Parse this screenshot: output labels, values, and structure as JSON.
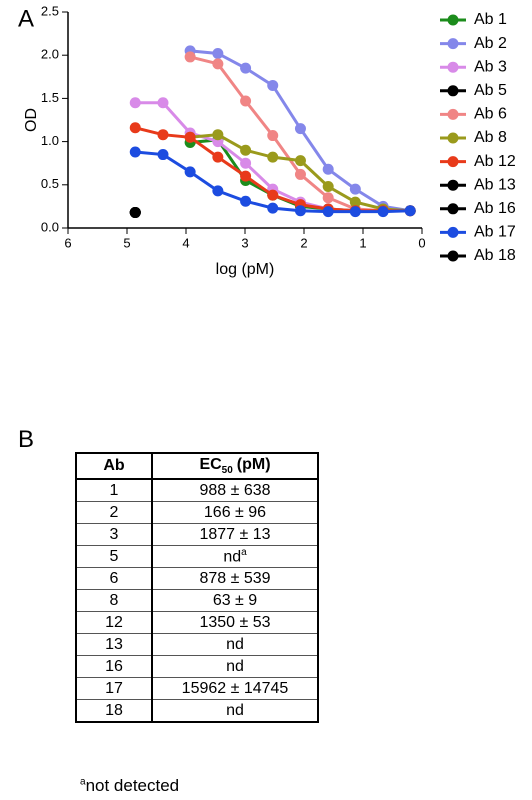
{
  "panel_labels": [
    "A",
    "B"
  ],
  "chart_data": {
    "type": "line",
    "xlabel": "log (pM)",
    "ylabel": "OD",
    "x": [
      4.86,
      4.39,
      3.93,
      3.46,
      2.99,
      2.53,
      2.06,
      1.59,
      1.13,
      0.66,
      0.2
    ],
    "xlim": [
      6,
      0
    ],
    "xticks": [
      6,
      5,
      4,
      3,
      2,
      1,
      0
    ],
    "ylim": [
      0,
      2.5
    ],
    "yticks": [
      {
        "value": 0,
        "label": "0.0"
      },
      {
        "value": 0.5,
        "label": "0.5"
      },
      {
        "value": 1,
        "label": "1.0"
      },
      {
        "value": 1.5,
        "label": "1.5"
      },
      {
        "value": 2,
        "label": "2.0"
      },
      {
        "value": 2.5,
        "label": "2.5"
      }
    ],
    "legend": "right",
    "series": [
      {
        "name": "Ab 1",
        "color": "#1c8c1c",
        "values": [
          null,
          null,
          0.99,
          1.02,
          0.55,
          0.38,
          0.25,
          0.22,
          0.2,
          0.2,
          0.2
        ]
      },
      {
        "name": "Ab 2",
        "color": "#8487ea",
        "values": [
          null,
          null,
          2.05,
          2.02,
          1.85,
          1.65,
          1.15,
          0.68,
          0.45,
          0.25,
          0.2
        ]
      },
      {
        "name": "Ab 3",
        "color": "#d88ae8",
        "values": [
          1.45,
          1.45,
          1.1,
          1.0,
          0.75,
          0.45,
          0.3,
          0.22,
          0.2,
          0.2,
          0.2
        ]
      },
      {
        "name": "Ab 5",
        "color": "#000000",
        "values": [
          0.18,
          null,
          null,
          null,
          null,
          null,
          null,
          null,
          null,
          null,
          null
        ]
      },
      {
        "name": "Ab 6",
        "color": "#f08585",
        "values": [
          null,
          null,
          1.98,
          1.9,
          1.47,
          1.07,
          0.62,
          0.35,
          0.22,
          0.2,
          0.2
        ]
      },
      {
        "name": "Ab 8",
        "color": "#9a9a1c",
        "values": [
          null,
          null,
          1.05,
          1.08,
          0.9,
          0.82,
          0.78,
          0.48,
          0.3,
          0.22,
          0.2
        ]
      },
      {
        "name": "Ab 12",
        "color": "#e83a1a",
        "values": [
          1.16,
          1.08,
          1.05,
          0.82,
          0.6,
          0.38,
          0.27,
          0.22,
          0.2,
          0.2,
          0.2
        ]
      },
      {
        "name": "Ab 13",
        "color": "#000000",
        "values": [
          0.18,
          null,
          null,
          null,
          null,
          null,
          null,
          null,
          null,
          null,
          null
        ]
      },
      {
        "name": "Ab 16",
        "color": "#000000",
        "values": [
          0.18,
          null,
          null,
          null,
          null,
          null,
          null,
          null,
          null,
          null,
          null
        ]
      },
      {
        "name": "Ab 17",
        "color": "#1c4ce0",
        "values": [
          0.88,
          0.85,
          0.65,
          0.43,
          0.31,
          0.23,
          0.2,
          0.19,
          0.19,
          0.19,
          0.2
        ]
      },
      {
        "name": "Ab 18",
        "color": "#000000",
        "values": [
          0.18,
          null,
          null,
          null,
          null,
          null,
          null,
          null,
          null,
          null,
          null
        ]
      }
    ]
  },
  "table": {
    "header": {
      "ab": "Ab",
      "ec": {
        "main": "EC",
        "sub": "50",
        "unit": "(pM)"
      }
    },
    "rows": [
      [
        "1",
        "988 ± 638"
      ],
      [
        "2",
        "166 ± 96"
      ],
      [
        "3",
        "1877 ± 13"
      ],
      [
        "5",
        {
          "text": "nd",
          "sup": "a"
        }
      ],
      [
        "6",
        "878 ± 539"
      ],
      [
        "8",
        "63 ± 9"
      ],
      [
        "12",
        "1350 ± 53"
      ],
      [
        "13",
        "nd"
      ],
      [
        "16",
        "nd"
      ],
      [
        "17",
        "15962 ± 14745"
      ],
      [
        "18",
        "nd"
      ]
    ]
  },
  "footnote": {
    "mark": "a",
    "text": "not detected"
  }
}
